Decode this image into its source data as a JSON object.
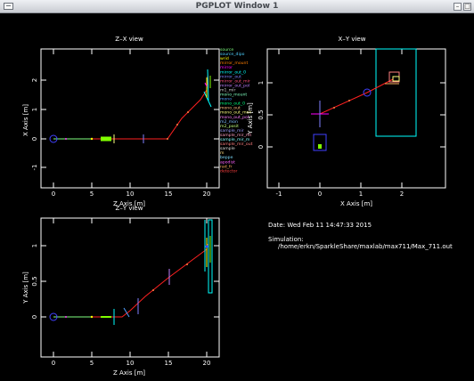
{
  "window": {
    "title": "PGPLOT Window 1",
    "minimize_glyph": "–",
    "maximize_glyph": "□"
  },
  "panels": {
    "zx": {
      "title": "Z–X view",
      "xlabel": "Z Axis [m]",
      "ylabel": "X Axis [m]",
      "xticks": [
        "0",
        "5",
        "10",
        "15",
        "20"
      ],
      "yticks": [
        "-1",
        "0",
        "1",
        "2"
      ]
    },
    "xy": {
      "title": "X–Y view",
      "xlabel": "X Axis [m]",
      "ylabel": "Y Axis [m]",
      "xticks": [
        "-1",
        "0",
        "1",
        "2"
      ],
      "yticks": [
        "0",
        "0.5",
        "1"
      ]
    },
    "zy": {
      "title": "Z–Y view",
      "xlabel": "Z Axis [m]",
      "ylabel": "Y Axis [m]",
      "xticks": [
        "0",
        "5",
        "10",
        "15",
        "20"
      ],
      "yticks": [
        "0",
        "0.5",
        "1"
      ]
    }
  },
  "legend": {
    "items": [
      {
        "label": "source",
        "color": "#7fff7f"
      },
      {
        "label": "source_dipo",
        "color": "#4fd0ff"
      },
      {
        "label": "wrid",
        "color": "#ffff00"
      },
      {
        "label": "mirror_mount",
        "color": "#ff7f00"
      },
      {
        "label": "mirror",
        "color": "#ff00ff"
      },
      {
        "label": "mirror_out_0",
        "color": "#00ffff"
      },
      {
        "label": "mirror_out",
        "color": "#7f7fff"
      },
      {
        "label": "mirror_out_mir",
        "color": "#ff4f7f"
      },
      {
        "label": "mirror_out_pol",
        "color": "#bf7fff"
      },
      {
        "label": "m1_mir",
        "color": "#cfcfcf"
      },
      {
        "label": "mono_mount",
        "color": "#7fffbf"
      },
      {
        "label": "mono",
        "color": "#4f9fff"
      },
      {
        "label": "mono_out_0",
        "color": "#00ff7f"
      },
      {
        "label": "mono_out",
        "color": "#ffbf7f"
      },
      {
        "label": "mono_out_mon",
        "color": "#ffff7f"
      },
      {
        "label": "mono_out_pol",
        "color": "#ff7fff"
      },
      {
        "label": "m2_mon",
        "color": "#7fbfff"
      },
      {
        "label": "m2_posit",
        "color": "#bfff7f"
      },
      {
        "label": "sample_mir",
        "color": "#9f9fff"
      },
      {
        "label": "sample_mir_mt",
        "color": "#ff9fbf"
      },
      {
        "label": "sample_mir_m",
        "color": "#7fffff"
      },
      {
        "label": "sample_mir_out",
        "color": "#ff7f7f"
      },
      {
        "label": "sample",
        "color": "#dfdfdf"
      },
      {
        "label": "m",
        "color": "#ffdf7f"
      },
      {
        "label": "beppe",
        "color": "#7fdfff"
      },
      {
        "label": "apodist",
        "color": "#ff5fff"
      },
      {
        "label": "rad_fr",
        "color": "#ffaf5f"
      },
      {
        "label": "detector",
        "color": "#ff3f3f"
      }
    ]
  },
  "info": {
    "date": "Date: Wed Feb 11 14:47:33 2015",
    "simulation_label": "Simulation:",
    "simulation_path": "/home/erkn/SparkleShare/maxlab/max711/Max_711.out"
  },
  "colors": {
    "axes": "#ffffff",
    "beam": "#ff2020",
    "rays_dot": "#ff8040",
    "source": "#4040ff",
    "green": "#80ff00",
    "cyan": "#00ffff",
    "magenta": "#ff00ff",
    "yellow": "#ffff00",
    "lightblue": "#4f9fff"
  }
}
